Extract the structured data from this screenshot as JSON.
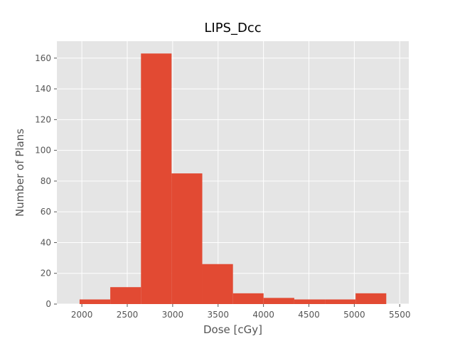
{
  "chart_data": {
    "type": "bar",
    "title": "LIPS_Dcc",
    "xlabel": "Dose [cGy]",
    "ylabel": "Number of Plans",
    "bin_edges": [
      1975,
      2313,
      2651,
      2988,
      3326,
      3664,
      4001,
      4339,
      4677,
      5014,
      5352
    ],
    "values": [
      3,
      11,
      163,
      85,
      26,
      7,
      4,
      3,
      3,
      7
    ],
    "xlim": [
      1725,
      5600
    ],
    "ylim": [
      0,
      171
    ],
    "xticks": [
      2000,
      2500,
      3000,
      3500,
      4000,
      4500,
      5000,
      5500
    ],
    "yticks": [
      0,
      20,
      40,
      60,
      80,
      100,
      120,
      140,
      160
    ],
    "grid": true,
    "style": "ggplot",
    "colors": {
      "bar": "#E24A33",
      "background": "#E5E5E5",
      "grid": "#FFFFFF",
      "tick_text": "#555555"
    }
  }
}
